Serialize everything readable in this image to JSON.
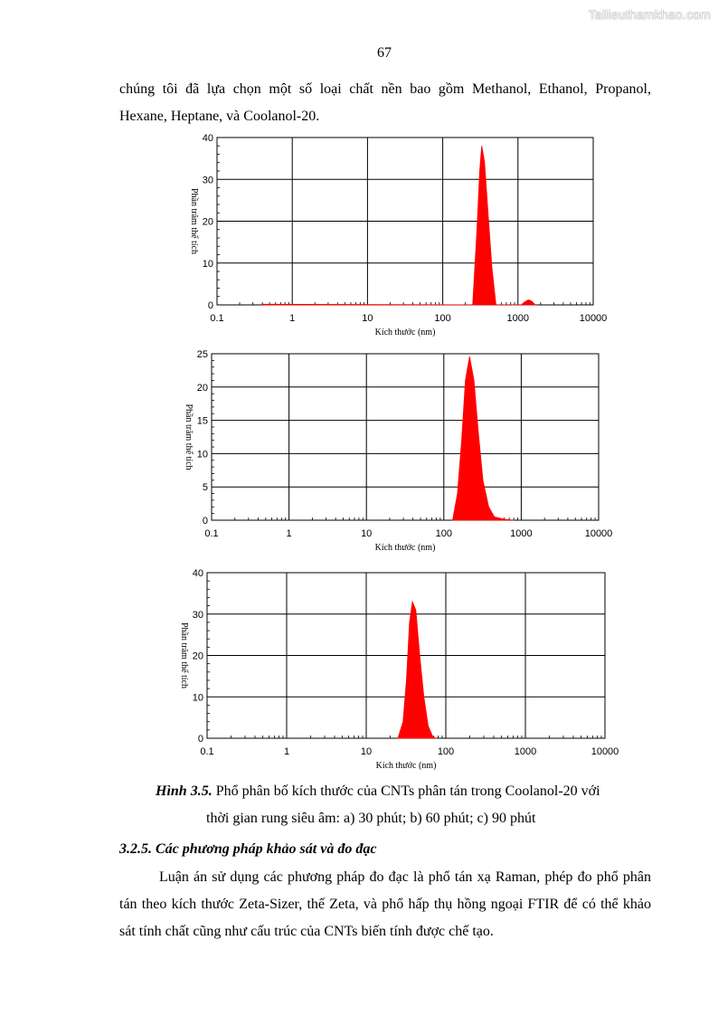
{
  "watermark": "Tailieuthamkhao.com",
  "page_number": "67",
  "intro": {
    "line1": "chúng tôi đã lựa chọn một số loại chất nền bao gồm Methanol, Ethanol, Propanol,",
    "line2": "Hexane, Heptane, và Coolanol-20."
  },
  "chart_data": [
    {
      "type": "area",
      "x_scale": "log",
      "xlim": [
        0.1,
        10000
      ],
      "ylim": [
        0,
        40
      ],
      "x_ticks": [
        "0.1",
        "1",
        "10",
        "100",
        "1000",
        "10000"
      ],
      "y_ticks": [
        "0",
        "10",
        "20",
        "30",
        "40"
      ],
      "xlabel": "Kích thước (nm)",
      "ylabel": "Phần trăm thể tích",
      "grid": true,
      "color": "#ff0000",
      "points": [
        [
          0.4,
          0.15
        ],
        [
          250,
          0
        ],
        [
          285,
          18
        ],
        [
          310,
          32
        ],
        [
          330,
          38
        ],
        [
          360,
          34
        ],
        [
          400,
          22
        ],
        [
          450,
          9
        ],
        [
          510,
          0
        ],
        [
          1100,
          0
        ],
        [
          1250,
          0.8
        ],
        [
          1380,
          1.2
        ],
        [
          1520,
          0.9
        ],
        [
          1700,
          0
        ]
      ]
    },
    {
      "type": "area",
      "x_scale": "log",
      "xlim": [
        0.1,
        10000
      ],
      "ylim": [
        0,
        25
      ],
      "x_ticks": [
        "0.1",
        "1",
        "10",
        "100",
        "1000",
        "10000"
      ],
      "y_ticks": [
        "0",
        "5",
        "10",
        "15",
        "20",
        "25"
      ],
      "xlabel": "Kích thước (nm)",
      "ylabel": "Phần trăm thể tích",
      "grid": true,
      "color": "#ff0000",
      "points": [
        [
          130,
          0
        ],
        [
          150,
          4
        ],
        [
          170,
          12
        ],
        [
          190,
          21
        ],
        [
          215,
          24.6
        ],
        [
          245,
          21
        ],
        [
          280,
          13
        ],
        [
          320,
          6
        ],
        [
          380,
          2
        ],
        [
          450,
          0.5
        ],
        [
          600,
          0.15
        ],
        [
          800,
          0
        ]
      ]
    },
    {
      "type": "area",
      "x_scale": "log",
      "xlim": [
        0.1,
        10000
      ],
      "ylim": [
        0,
        40
      ],
      "x_ticks": [
        "0.1",
        "1",
        "10",
        "100",
        "1000",
        "10000"
      ],
      "y_ticks": [
        "0",
        "10",
        "20",
        "30",
        "40"
      ],
      "xlabel": "Kích thước (nm)",
      "ylabel": "Phần trăm thể tích",
      "grid": true,
      "color": "#ff0000",
      "points": [
        [
          25,
          0
        ],
        [
          29,
          4
        ],
        [
          32,
          14
        ],
        [
          35,
          28
        ],
        [
          38,
          33
        ],
        [
          42,
          31
        ],
        [
          47,
          20
        ],
        [
          53,
          10
        ],
        [
          60,
          3
        ],
        [
          68,
          0.5
        ],
        [
          75,
          0
        ]
      ]
    }
  ],
  "caption": {
    "label": "Hình 3.5.",
    "text_line1": " Phổ phân bố kích thước của CNTs phân tán trong Coolanol-20 với",
    "text_line2": "thời gian rung siêu âm: a) 30 phút; b) 60 phút; c) 90 phút"
  },
  "section": {
    "heading": "3.2.5. Các phương pháp khảo sát và đo đạc",
    "paragraph": "Luận án sử dụng các phương pháp đo đạc là phổ tán xạ Raman, phép đo phổ phân tán theo kích thước Zeta-Sizer, thế Zeta, và phổ hấp thụ hồng ngoại FTIR để có thể khảo sát tính chất cũng như cấu trúc của CNTs biến tính được chế tạo."
  }
}
